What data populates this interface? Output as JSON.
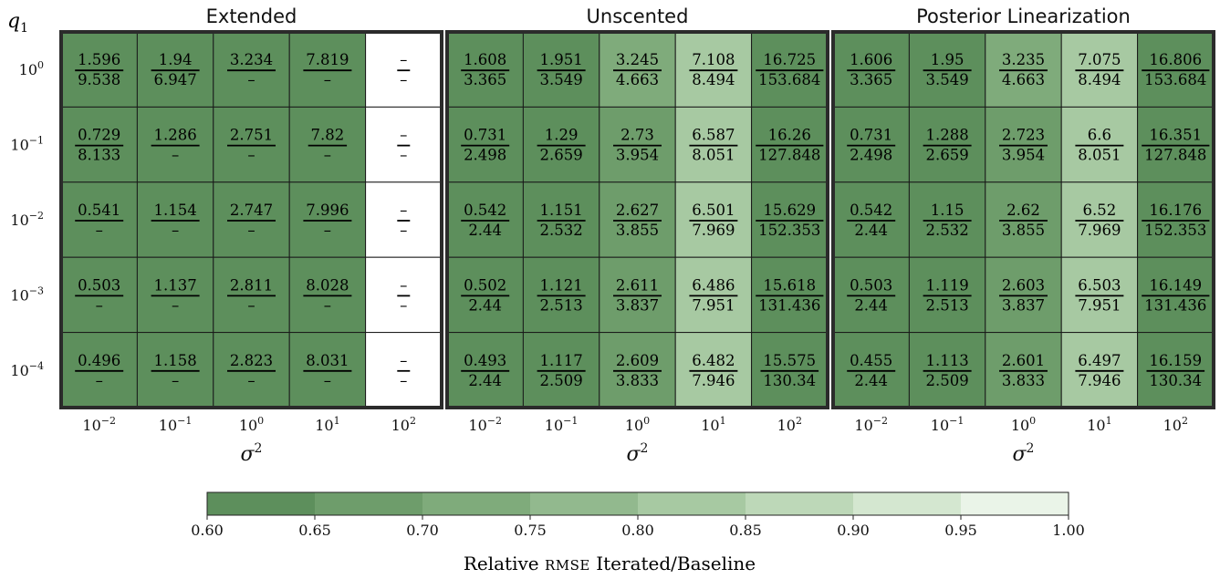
{
  "y_axis_label": "q",
  "y_axis_label_sub": "1",
  "x_axis_label": "σ",
  "x_axis_label_sup": "2",
  "colorbar": {
    "label_main": "Relative ",
    "label_sc": "RMSE",
    "label_end": " Iterated/Baseline",
    "ticks": [
      "0.60",
      "0.65",
      "0.70",
      "0.75",
      "0.80",
      "0.85",
      "0.90",
      "0.95",
      "1.00"
    ],
    "range": [
      0.6,
      1.0
    ],
    "bin_colors": [
      "#5d8f5c",
      "#6e9d6b",
      "#7fab7b",
      "#92b98e",
      "#a7c9a2",
      "#bdd8b8",
      "#d4e7d0",
      "#eaf4e8"
    ]
  },
  "chart_data": {
    "type": "heatmap",
    "x_tick_base": "10",
    "y_tick_base": "10",
    "x_exponents": [
      "−2",
      "−1",
      "0",
      "1",
      "2"
    ],
    "y_exponents": [
      "0",
      "−1",
      "−2",
      "−3",
      "−4"
    ],
    "x_values": [
      0.01,
      0.1,
      1,
      10,
      100
    ],
    "y_values": [
      1,
      0.1,
      0.01,
      0.001,
      0.0001
    ],
    "panels": [
      {
        "title": "Extended",
        "relative": [
          [
            0.62,
            0.62,
            0.62,
            0.62,
            1.0
          ],
          [
            0.62,
            0.62,
            0.62,
            0.62,
            1.0
          ],
          [
            0.62,
            0.62,
            0.62,
            0.62,
            1.0
          ],
          [
            0.62,
            0.62,
            0.62,
            0.62,
            1.0
          ],
          [
            0.62,
            0.62,
            0.62,
            0.62,
            1.0
          ]
        ],
        "iterated": [
          [
            "1.596",
            "1.94",
            "3.234",
            "7.819",
            "–"
          ],
          [
            "0.729",
            "1.286",
            "2.751",
            "7.82",
            "–"
          ],
          [
            "0.541",
            "1.154",
            "2.747",
            "7.996",
            "–"
          ],
          [
            "0.503",
            "1.137",
            "2.811",
            "8.028",
            "–"
          ],
          [
            "0.496",
            "1.158",
            "2.823",
            "8.031",
            "–"
          ]
        ],
        "baseline": [
          [
            "9.538",
            "6.947",
            "–",
            "–",
            "–"
          ],
          [
            "8.133",
            "–",
            "–",
            "–",
            "–"
          ],
          [
            "–",
            "–",
            "–",
            "–",
            "–"
          ],
          [
            "–",
            "–",
            "–",
            "–",
            "–"
          ],
          [
            "–",
            "–",
            "–",
            "–",
            "–"
          ]
        ]
      },
      {
        "title": "Unscented",
        "relative": [
          [
            0.62,
            0.62,
            0.71,
            0.83,
            0.62
          ],
          [
            0.62,
            0.62,
            0.69,
            0.82,
            0.62
          ],
          [
            0.62,
            0.62,
            0.68,
            0.82,
            0.62
          ],
          [
            0.62,
            0.62,
            0.68,
            0.82,
            0.62
          ],
          [
            0.62,
            0.62,
            0.68,
            0.82,
            0.62
          ]
        ],
        "iterated": [
          [
            "1.608",
            "1.951",
            "3.245",
            "7.108",
            "16.725"
          ],
          [
            "0.731",
            "1.29",
            "2.73",
            "6.587",
            "16.26"
          ],
          [
            "0.542",
            "1.151",
            "2.627",
            "6.501",
            "15.629"
          ],
          [
            "0.502",
            "1.121",
            "2.611",
            "6.486",
            "15.618"
          ],
          [
            "0.493",
            "1.117",
            "2.609",
            "6.482",
            "15.575"
          ]
        ],
        "baseline": [
          [
            "3.365",
            "3.549",
            "4.663",
            "8.494",
            "153.684"
          ],
          [
            "2.498",
            "2.659",
            "3.954",
            "8.051",
            "127.848"
          ],
          [
            "2.44",
            "2.532",
            "3.855",
            "7.969",
            "152.353"
          ],
          [
            "2.44",
            "2.513",
            "3.837",
            "7.951",
            "131.436"
          ],
          [
            "2.44",
            "2.509",
            "3.833",
            "7.946",
            "130.34"
          ]
        ]
      },
      {
        "title": "Posterior Linearization",
        "relative": [
          [
            0.62,
            0.62,
            0.71,
            0.83,
            0.62
          ],
          [
            0.62,
            0.62,
            0.69,
            0.82,
            0.62
          ],
          [
            0.62,
            0.62,
            0.68,
            0.82,
            0.62
          ],
          [
            0.62,
            0.62,
            0.68,
            0.82,
            0.62
          ],
          [
            0.62,
            0.62,
            0.68,
            0.82,
            0.62
          ]
        ],
        "iterated": [
          [
            "1.606",
            "1.95",
            "3.235",
            "7.075",
            "16.806"
          ],
          [
            "0.731",
            "1.288",
            "2.723",
            "6.6",
            "16.351"
          ],
          [
            "0.542",
            "1.15",
            "2.62",
            "6.52",
            "16.176"
          ],
          [
            "0.503",
            "1.119",
            "2.603",
            "6.503",
            "16.149"
          ],
          [
            "0.455",
            "1.113",
            "2.601",
            "6.497",
            "16.159"
          ]
        ],
        "baseline": [
          [
            "3.365",
            "3.549",
            "4.663",
            "8.494",
            "153.684"
          ],
          [
            "2.498",
            "2.659",
            "3.954",
            "8.051",
            "127.848"
          ],
          [
            "2.44",
            "2.532",
            "3.855",
            "7.969",
            "152.353"
          ],
          [
            "2.44",
            "2.513",
            "3.837",
            "7.951",
            "131.436"
          ],
          [
            "2.44",
            "2.509",
            "3.833",
            "7.946",
            "130.34"
          ]
        ]
      }
    ]
  }
}
